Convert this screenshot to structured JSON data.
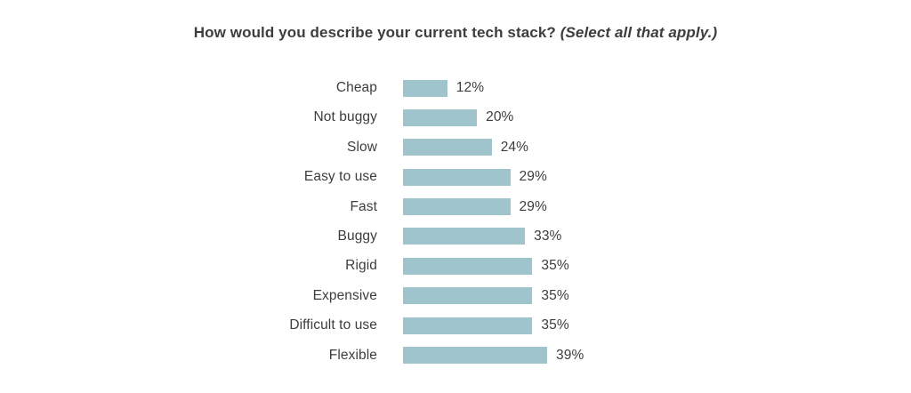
{
  "chart_data": {
    "type": "bar",
    "orientation": "horizontal",
    "title": "How would you describe your current tech stack?",
    "title_note": "(Select all that apply.)",
    "categories": [
      "Cheap",
      "Not buggy",
      "Slow",
      "Easy to use",
      "Fast",
      "Buggy",
      "Rigid",
      "Expensive",
      "Difficult to use",
      "Flexible"
    ],
    "values": [
      12,
      20,
      24,
      29,
      29,
      33,
      35,
      35,
      35,
      39
    ],
    "value_labels": [
      "12%",
      "20%",
      "24%",
      "29%",
      "29%",
      "33%",
      "35%",
      "35%",
      "35%",
      "39%"
    ],
    "value_suffix": "%",
    "xlim": [
      0,
      42
    ],
    "grid": false,
    "legend_position": "none",
    "bar_color": "#A0C4CC",
    "text_color": "#3D3D3D",
    "background_color": "#FFFFFF"
  }
}
